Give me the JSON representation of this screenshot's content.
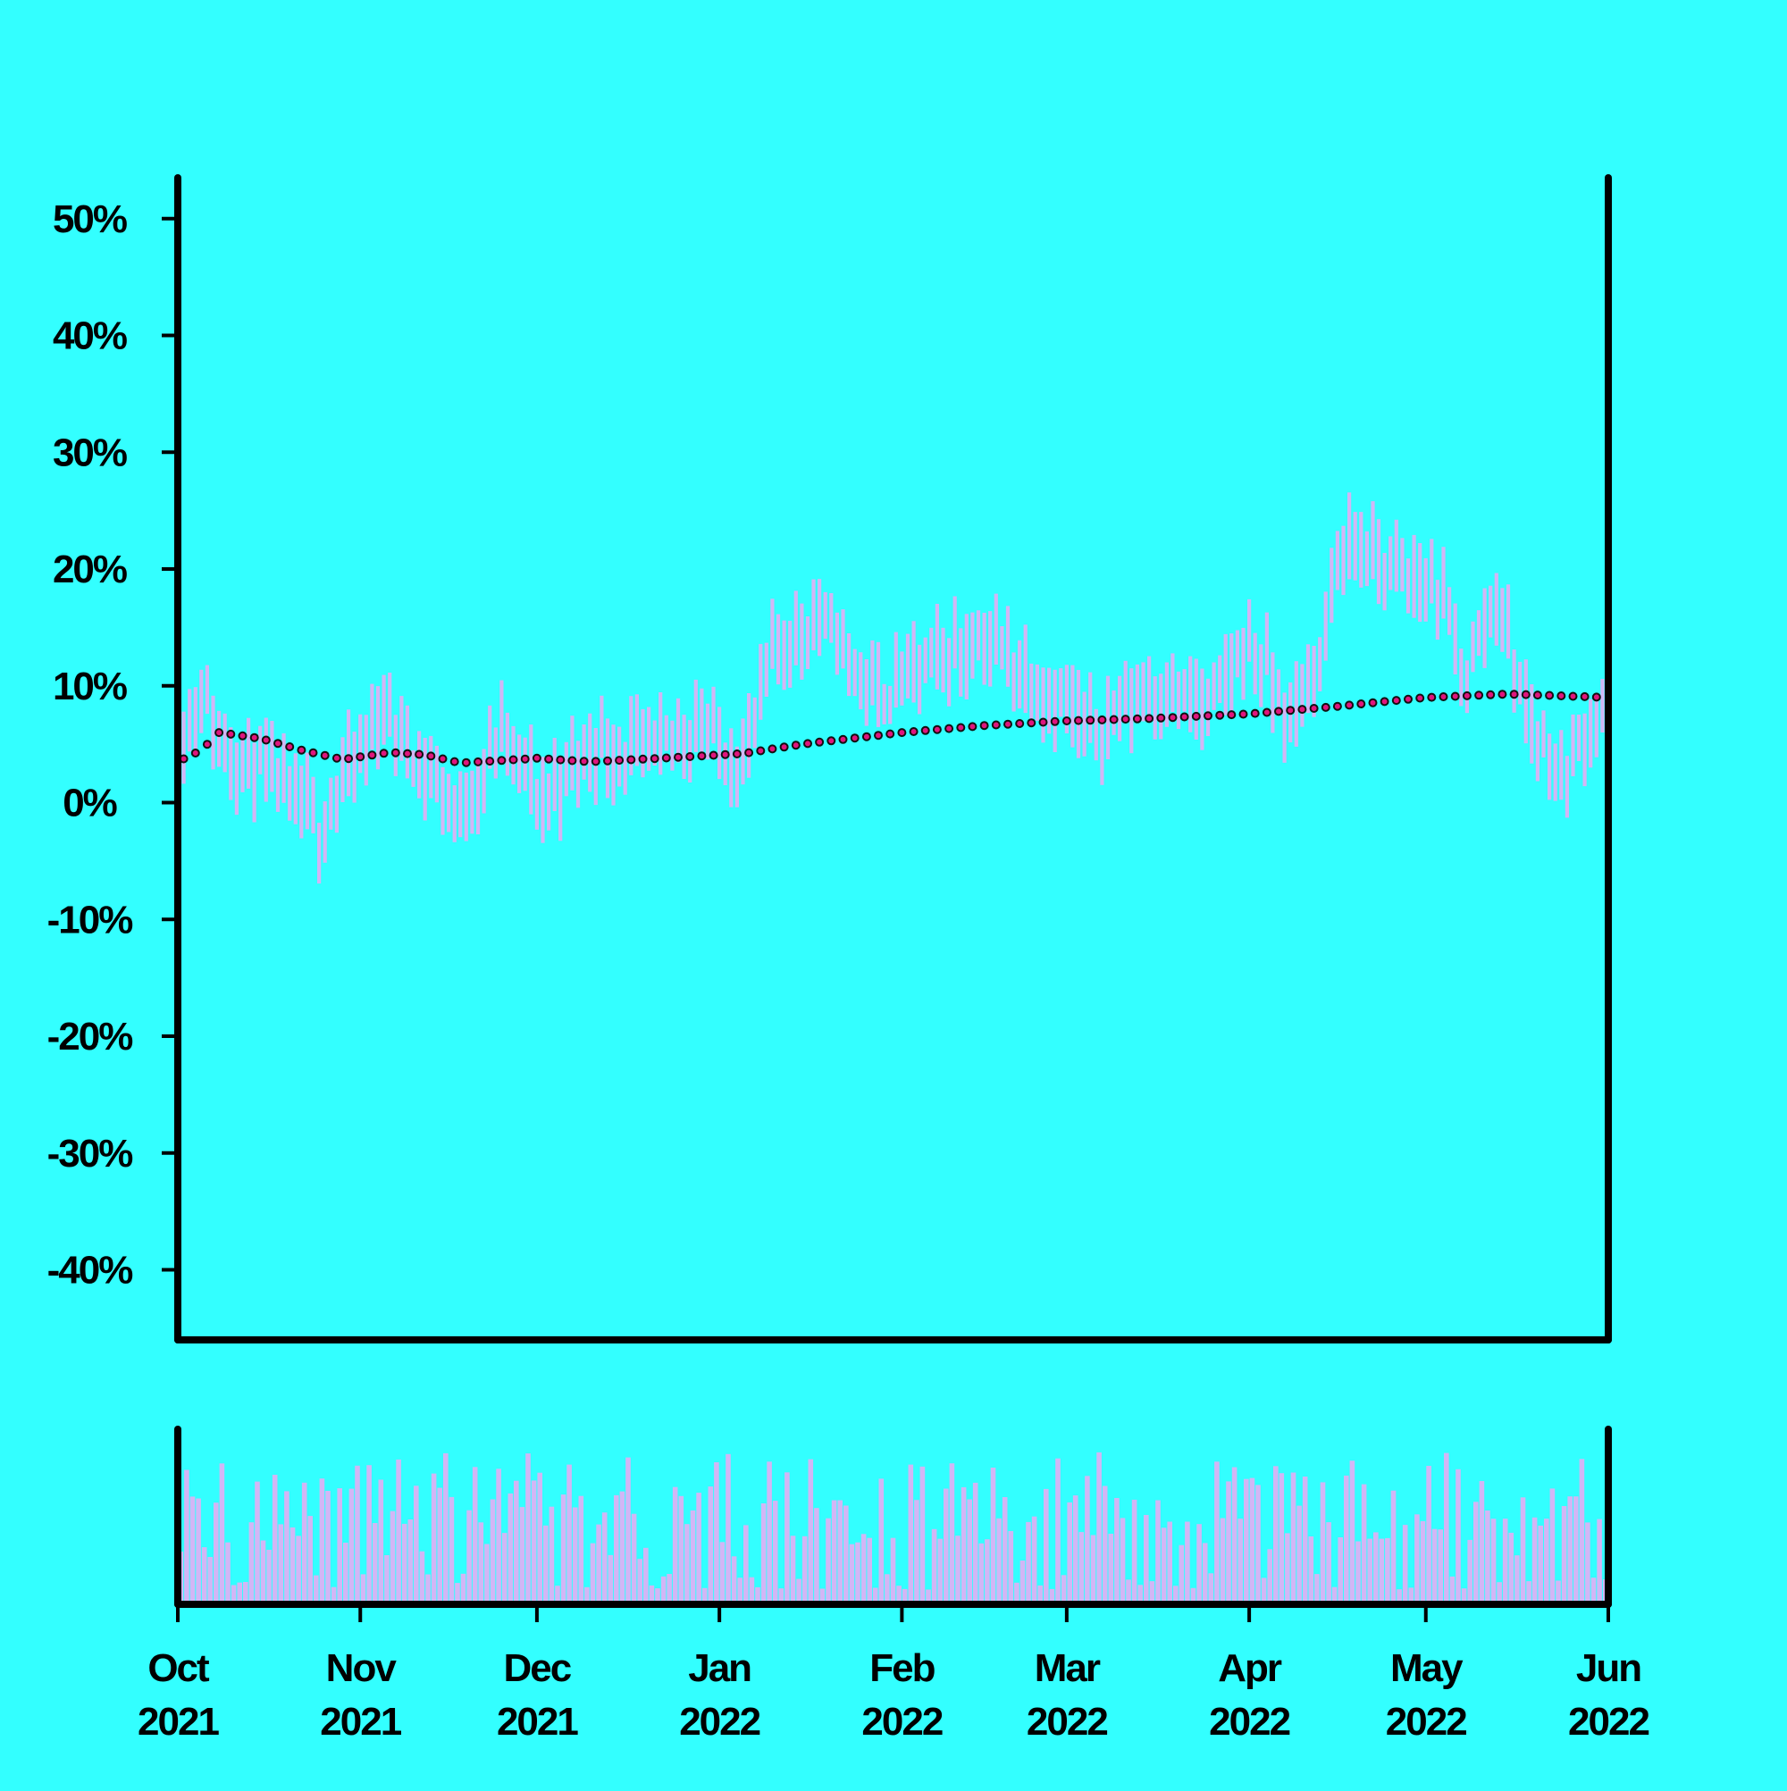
{
  "chart_data": {
    "type": "ohlc",
    "colors": {
      "background": "#33ffff",
      "candles": "#d2b6f5",
      "volume": "#d2b6f5",
      "moving_average_fill": "#e0157d",
      "moving_average_edge": "#111111",
      "axes": "#000000"
    },
    "x_axis": {
      "start": "2021-10-01",
      "end": "2022-06-01",
      "ticks": [
        {
          "month": "Oct",
          "year": "2021",
          "date": "2021-10-01"
        },
        {
          "month": "Nov",
          "year": "2021",
          "date": "2021-11-01"
        },
        {
          "month": "Dec",
          "year": "2021",
          "date": "2021-12-01"
        },
        {
          "month": "Jan",
          "year": "2022",
          "date": "2022-01-01"
        },
        {
          "month": "Feb",
          "year": "2022",
          "date": "2022-02-01"
        },
        {
          "month": "Mar",
          "year": "2022",
          "date": "2022-03-01"
        },
        {
          "month": "Apr",
          "year": "2022",
          "date": "2022-04-01"
        },
        {
          "month": "May",
          "year": "2022",
          "date": "2022-05-01"
        },
        {
          "month": "Jun",
          "year": "2022",
          "date": "2022-06-01"
        }
      ]
    },
    "y_axis": {
      "unit": "%",
      "range": [
        -46,
        53.5
      ],
      "tick_labels": [
        "50%",
        "40%",
        "30%",
        "20%",
        "10%",
        "0%",
        "-10%",
        "-20%",
        "-30%",
        "-40%"
      ],
      "tick_values": [
        50,
        40,
        30,
        20,
        10,
        0,
        -10,
        -20,
        -30,
        -40
      ]
    },
    "price_trend": [
      {
        "date": "2021-10-01",
        "value": 4
      },
      {
        "date": "2021-10-05",
        "value": 10
      },
      {
        "date": "2021-10-08",
        "value": 5
      },
      {
        "date": "2021-10-15",
        "value": 3
      },
      {
        "date": "2021-10-25",
        "value": -2
      },
      {
        "date": "2021-11-05",
        "value": 8
      },
      {
        "date": "2021-11-12",
        "value": 3
      },
      {
        "date": "2021-11-18",
        "value": -1
      },
      {
        "date": "2021-11-25",
        "value": 6
      },
      {
        "date": "2021-12-02",
        "value": 0
      },
      {
        "date": "2021-12-10",
        "value": 5
      },
      {
        "date": "2021-12-20",
        "value": 4
      },
      {
        "date": "2021-12-28",
        "value": 7
      },
      {
        "date": "2022-01-05",
        "value": 3
      },
      {
        "date": "2022-01-10",
        "value": 13
      },
      {
        "date": "2022-01-18",
        "value": 16
      },
      {
        "date": "2022-01-28",
        "value": 9
      },
      {
        "date": "2022-02-05",
        "value": 12
      },
      {
        "date": "2022-02-15",
        "value": 14
      },
      {
        "date": "2022-02-25",
        "value": 10
      },
      {
        "date": "2022-03-05",
        "value": 6
      },
      {
        "date": "2022-03-15",
        "value": 10
      },
      {
        "date": "2022-03-25",
        "value": 8
      },
      {
        "date": "2022-04-01",
        "value": 14
      },
      {
        "date": "2022-04-08",
        "value": 7
      },
      {
        "date": "2022-04-13",
        "value": 12
      },
      {
        "date": "2022-04-17",
        "value": 23
      },
      {
        "date": "2022-04-25",
        "value": 20
      },
      {
        "date": "2022-05-03",
        "value": 18
      },
      {
        "date": "2022-05-08",
        "value": 11
      },
      {
        "date": "2022-05-13",
        "value": 18
      },
      {
        "date": "2022-05-18",
        "value": 8
      },
      {
        "date": "2022-05-24",
        "value": 2
      },
      {
        "date": "2022-05-28",
        "value": 6
      },
      {
        "date": "2022-06-01",
        "value": 9
      }
    ],
    "moving_average": [
      {
        "date": "2021-10-01",
        "value": 3.5
      },
      {
        "date": "2021-10-05",
        "value": 4.5
      },
      {
        "date": "2021-10-08",
        "value": 6
      },
      {
        "date": "2021-10-15",
        "value": 5.5
      },
      {
        "date": "2021-10-22",
        "value": 4.5
      },
      {
        "date": "2021-10-29",
        "value": 3.7
      },
      {
        "date": "2021-11-06",
        "value": 4.3
      },
      {
        "date": "2021-11-12",
        "value": 4.1
      },
      {
        "date": "2021-11-18",
        "value": 3.4
      },
      {
        "date": "2021-12-01",
        "value": 3.8
      },
      {
        "date": "2021-12-10",
        "value": 3.5
      },
      {
        "date": "2021-12-22",
        "value": 3.8
      },
      {
        "date": "2022-01-05",
        "value": 4.2
      },
      {
        "date": "2022-01-15",
        "value": 5
      },
      {
        "date": "2022-02-01",
        "value": 6
      },
      {
        "date": "2022-02-15",
        "value": 6.6
      },
      {
        "date": "2022-03-01",
        "value": 7
      },
      {
        "date": "2022-03-15",
        "value": 7.2
      },
      {
        "date": "2022-04-01",
        "value": 7.6
      },
      {
        "date": "2022-04-15",
        "value": 8.2
      },
      {
        "date": "2022-05-01",
        "value": 9
      },
      {
        "date": "2022-05-15",
        "value": 9.3
      },
      {
        "date": "2022-06-01",
        "value": 9
      }
    ]
  }
}
